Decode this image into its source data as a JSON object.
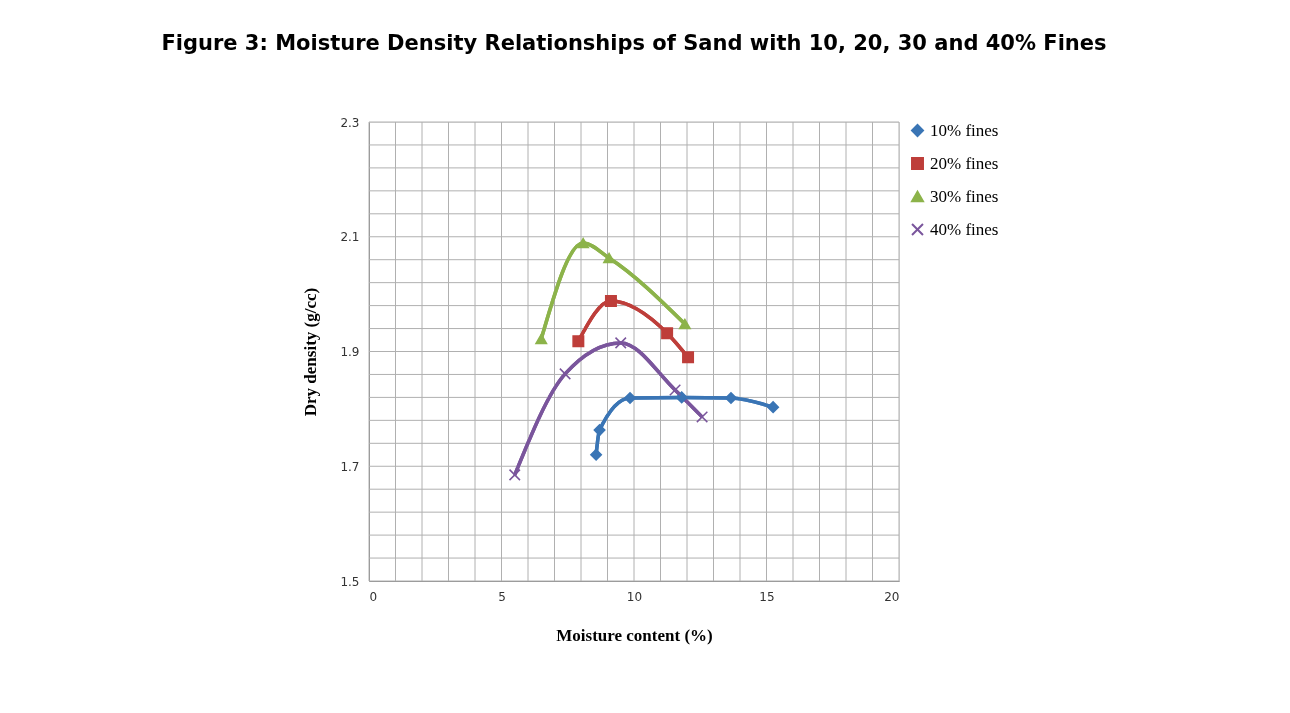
{
  "chart_data": {
    "type": "line",
    "title": "Figure 3: Moisture Density Relationships of Sand with 10, 20, 30 and 40% Fines",
    "xlabel": "Moisture content (%)",
    "ylabel": "Dry density (g/cc)",
    "xlim": [
      0,
      20
    ],
    "ylim": [
      1.5,
      2.3
    ],
    "xticks": [
      0,
      {
        "value": 1,
        "label": null
      },
      {
        "value": 2,
        "label": null
      },
      {
        "value": 3,
        "label": null
      },
      {
        "value": 4,
        "label": null
      },
      5,
      {
        "value": 6,
        "label": null
      },
      {
        "value": 7,
        "label": null
      },
      {
        "value": 8,
        "label": null
      },
      {
        "value": 9,
        "label": null
      },
      10,
      {
        "value": 11,
        "label": null
      },
      {
        "value": 12,
        "label": null
      },
      {
        "value": 13,
        "label": null
      },
      {
        "value": 14,
        "label": null
      },
      15,
      {
        "value": 16,
        "label": null
      },
      {
        "value": 17,
        "label": null
      },
      {
        "value": 18,
        "label": null
      },
      {
        "value": 19,
        "label": null
      },
      20
    ],
    "yticks": [
      1.5,
      {
        "value": 1.54,
        "label": null
      },
      {
        "value": 1.58,
        "label": null
      },
      {
        "value": 1.62,
        "label": null
      },
      {
        "value": 1.66,
        "label": null
      },
      1.7,
      {
        "value": 1.74,
        "label": null
      },
      {
        "value": 1.78,
        "label": null
      },
      {
        "value": 1.82,
        "label": null
      },
      {
        "value": 1.86,
        "label": null
      },
      1.9,
      {
        "value": 1.94,
        "label": null
      },
      {
        "value": 1.98,
        "label": null
      },
      {
        "value": 2.02,
        "label": null
      },
      {
        "value": 2.06,
        "label": null
      },
      2.1,
      {
        "value": 2.14,
        "label": null
      },
      {
        "value": 2.18,
        "label": null
      },
      {
        "value": 2.22,
        "label": null
      },
      {
        "value": 2.26,
        "label": null
      },
      2.3
    ],
    "grid": true,
    "legend": "right",
    "line_style": "solid",
    "series": [
      {
        "name": "10% fines",
        "color": "#3a75b5",
        "marker": "diamond",
        "x": [
          8.57,
          8.7,
          9.85,
          11.8,
          13.66,
          15.25
        ],
        "values": [
          1.72,
          1.763,
          1.819,
          1.82,
          1.819,
          1.803
        ]
      },
      {
        "name": "20% fines",
        "color": "#be3e3a",
        "marker": "square",
        "x": [
          7.9,
          9.13,
          11.25,
          12.04
        ],
        "values": [
          1.918,
          1.988,
          1.932,
          1.89
        ]
      },
      {
        "name": "30% fines",
        "color": "#8cb34a",
        "marker": "triangle",
        "x": [
          6.5,
          8.08,
          9.06,
          11.92
        ],
        "values": [
          1.922,
          2.089,
          2.063,
          1.948
        ]
      },
      {
        "name": "40% fines",
        "color": "#7a559c",
        "marker": "cross",
        "x": [
          5.5,
          7.4,
          9.5,
          11.55,
          12.57
        ],
        "values": [
          1.685,
          1.861,
          1.915,
          1.833,
          1.786
        ]
      }
    ]
  }
}
